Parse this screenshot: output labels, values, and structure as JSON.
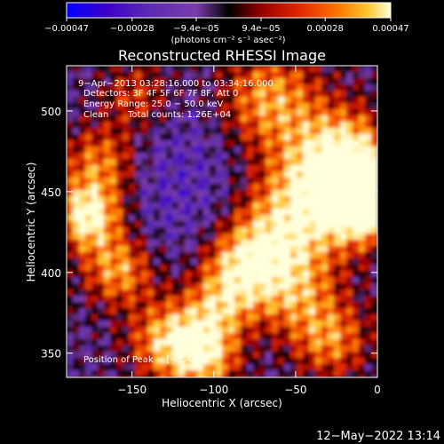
{
  "chart_data": {
    "type": "heatmap",
    "title": "Reconstructed RHESSI Image",
    "xlabel": "Heliocentric X (arcsec)",
    "ylabel": "Heliocentric Y (arcsec)",
    "xlim": [
      -190,
      0
    ],
    "ylim": [
      335,
      528
    ],
    "x_ticks": [
      -150,
      -100,
      -50,
      0
    ],
    "y_ticks": [
      350,
      400,
      450,
      500
    ],
    "x_tick_labels": [
      "−150",
      "−100",
      "−50",
      "0"
    ],
    "y_tick_labels": [
      "350",
      "400",
      "450",
      "500"
    ],
    "colorbar": {
      "unit_label": "(photons cm⁻² s⁻¹ asec⁻²)",
      "ticks": [
        -0.00047,
        -0.00028,
        -9.4e-05,
        9.4e-05,
        0.00028,
        0.00047
      ],
      "tick_labels": [
        "−0.00047",
        "−0.00028",
        "−9.4e−05",
        "9.4e−05",
        "0.00028",
        "0.00047"
      ],
      "range": [
        -0.00047,
        0.00047
      ]
    },
    "annotations": [
      "9−Apr−2013 03:28:16.000 to 03:34:16.000",
      "Detectors: 3F 4F 5F 6F 7F 8F, Att 0",
      "Energy Range: 25.0 − 50.0 keV",
      "Clean",
      "Total counts: 1.26E+04",
      "Position of Peak = [−5,442]"
    ],
    "peak_position": [
      -5,
      442
    ],
    "grid": false,
    "colors": {
      "colormap": [
        "#0000ff",
        "#3a00c8",
        "#5a2ab4",
        "#7a3caa",
        "#000000",
        "#960000",
        "#e12800",
        "#ff7800",
        "#ffc832",
        "#ffffdc"
      ]
    }
  },
  "footer": {
    "timestamp": "12−May−2022 13:14"
  }
}
